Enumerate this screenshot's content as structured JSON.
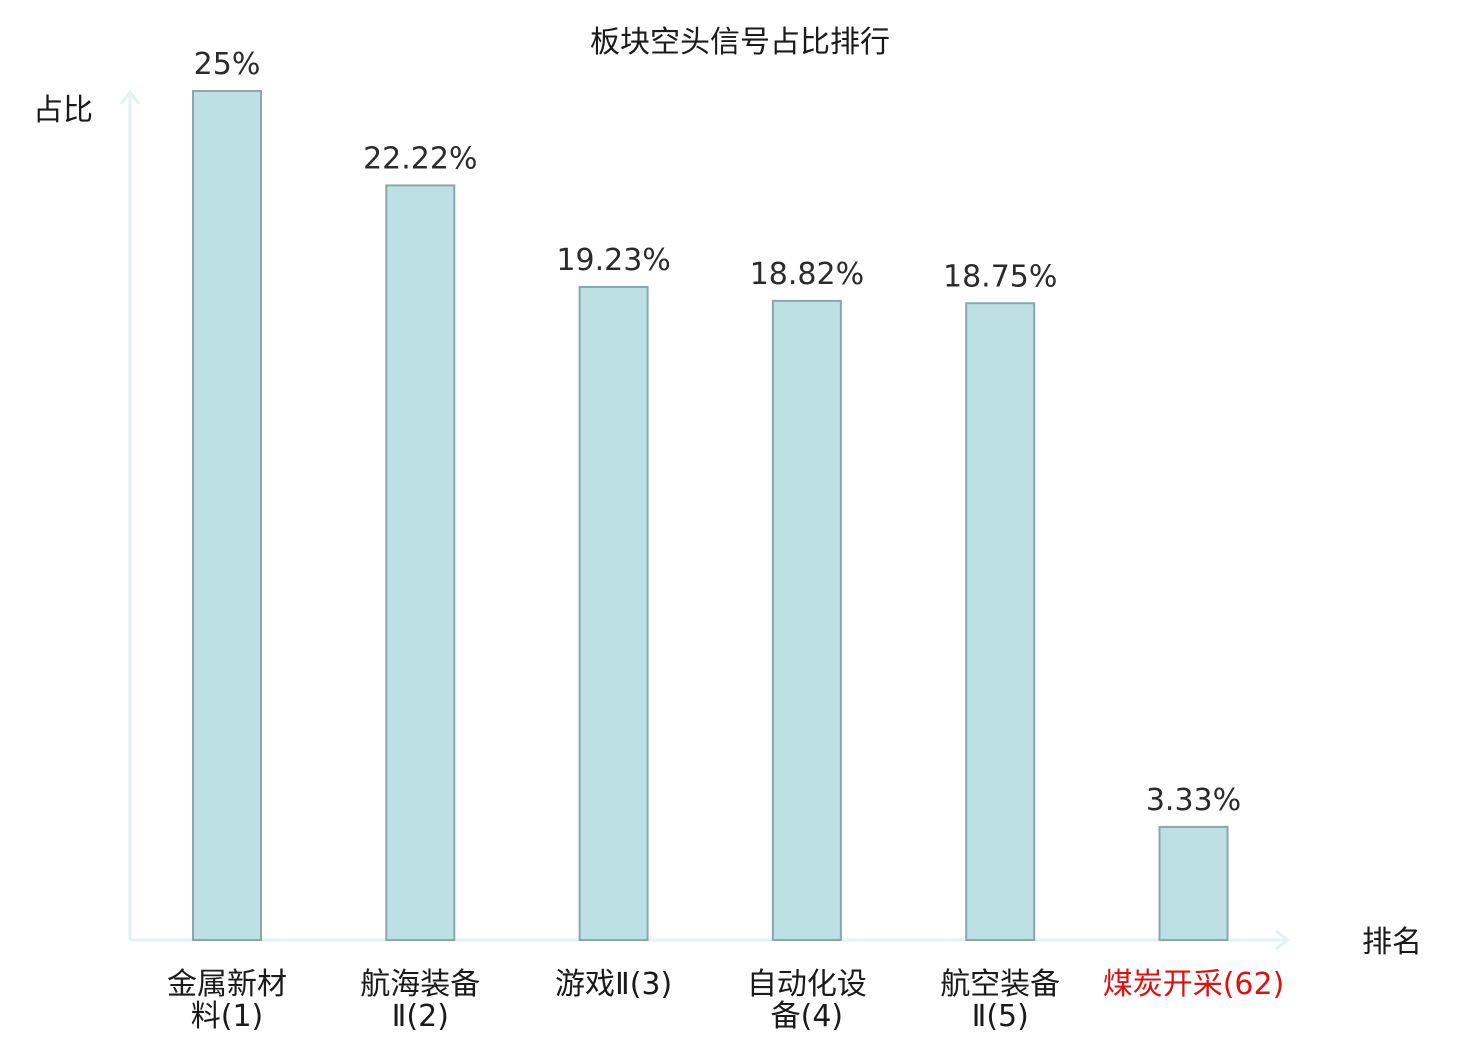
{
  "colors": {
    "bar_fill": "#bce0e3",
    "bar_stroke": "#8aa8ab",
    "axis": "#e0f3f2",
    "text": "#1a1a1a",
    "highlight_text": "#e01010"
  },
  "chart_data": {
    "type": "bar",
    "title": "板块空头信号占比排行",
    "xlabel": "排名",
    "ylabel": "占比",
    "ylim": [
      0,
      25
    ],
    "grid": false,
    "bars": [
      {
        "category": "金属新材料(1)",
        "label_lines": [
          "金属新材",
          "料(1)"
        ],
        "value": 25.0,
        "value_label": "25%",
        "highlight": false
      },
      {
        "category": "航海装备Ⅱ(2)",
        "label_lines": [
          "航海装备",
          "Ⅱ(2)"
        ],
        "value": 22.22,
        "value_label": "22.22%",
        "highlight": false
      },
      {
        "category": "游戏Ⅱ(3)",
        "label_lines": [
          "游戏Ⅱ(3)"
        ],
        "value": 19.23,
        "value_label": "19.23%",
        "highlight": false
      },
      {
        "category": "自动化设备(4)",
        "label_lines": [
          "自动化设",
          "备(4)"
        ],
        "value": 18.82,
        "value_label": "18.82%",
        "highlight": false
      },
      {
        "category": "航空装备Ⅱ(5)",
        "label_lines": [
          "航空装备",
          "Ⅱ(5)"
        ],
        "value": 18.75,
        "value_label": "18.75%",
        "highlight": false
      },
      {
        "category": "煤炭开采(62)",
        "label_lines": [
          "煤炭开采(62)"
        ],
        "value": 3.33,
        "value_label": "3.33%",
        "highlight": true
      }
    ]
  }
}
